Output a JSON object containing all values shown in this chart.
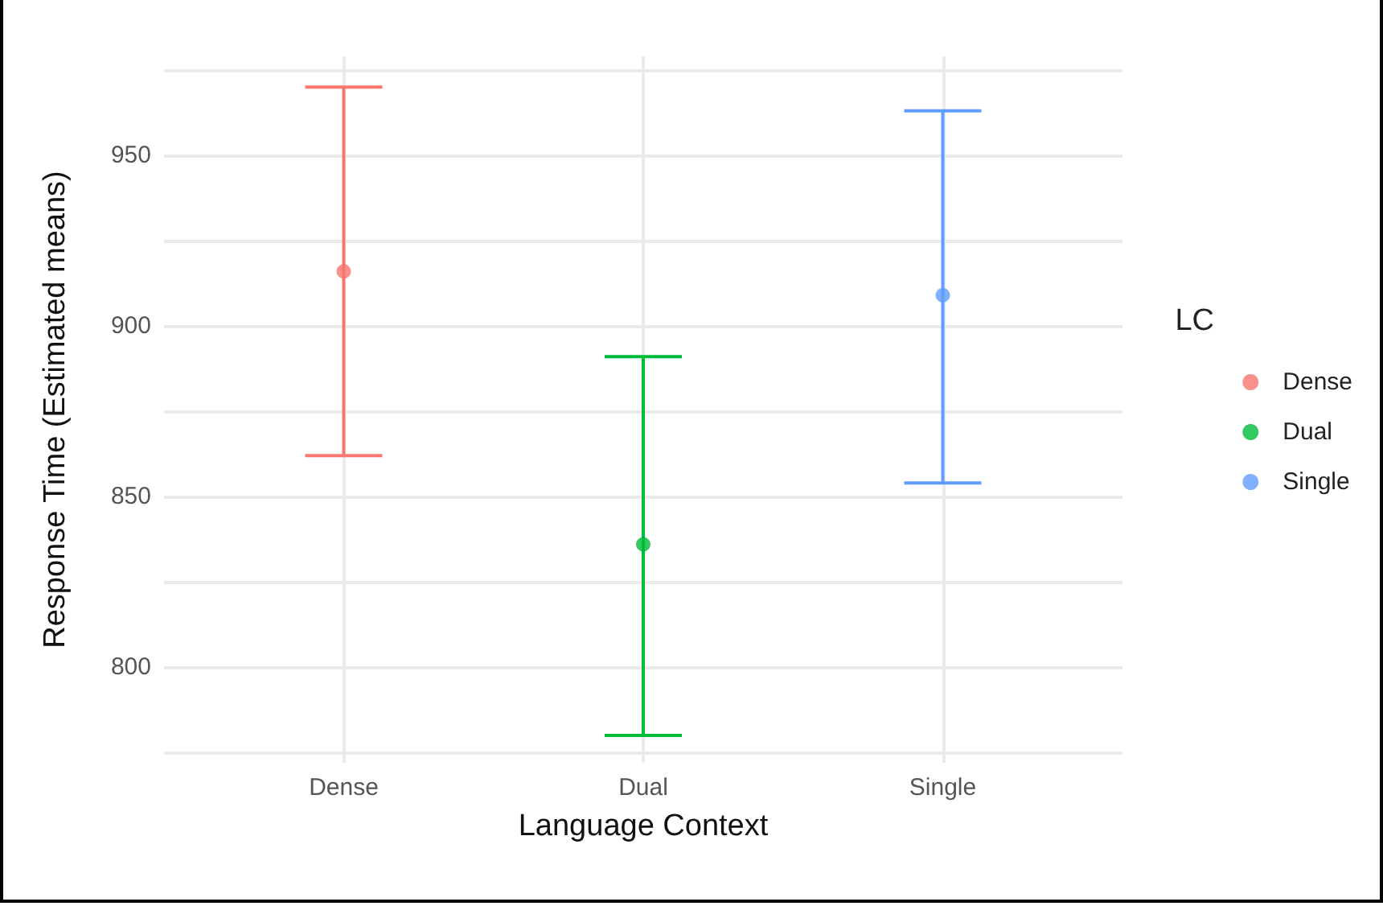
{
  "chart_data": {
    "type": "scatter",
    "xlabel": "Language Context",
    "ylabel": "Response Time (Estimated means)",
    "legend_title": "LC",
    "categories": [
      "Dense",
      "Dual",
      "Single"
    ],
    "series": [
      {
        "name": "Dense",
        "color": "#f8766d",
        "values": [
          916,
          null,
          null
        ],
        "errors": [
          [
            862,
            970
          ],
          null,
          null
        ]
      },
      {
        "name": "Dual",
        "color": "#00ba38",
        "values": [
          null,
          836,
          null
        ],
        "errors": [
          null,
          [
            780,
            891
          ],
          null
        ]
      },
      {
        "name": "Single",
        "color": "#619cff",
        "values": [
          null,
          null,
          909
        ],
        "errors": [
          null,
          null,
          [
            854,
            963
          ]
        ]
      }
    ],
    "ylim": [
      772,
      979
    ],
    "yticks": [
      {
        "value": 775,
        "label": null
      },
      800,
      {
        "value": 825,
        "label": null
      },
      850,
      {
        "value": 875,
        "label": null
      },
      900,
      {
        "value": 925,
        "label": null
      },
      950,
      {
        "value": 975,
        "label": null
      }
    ],
    "grid": true,
    "legend": "right",
    "marker": "circle"
  }
}
